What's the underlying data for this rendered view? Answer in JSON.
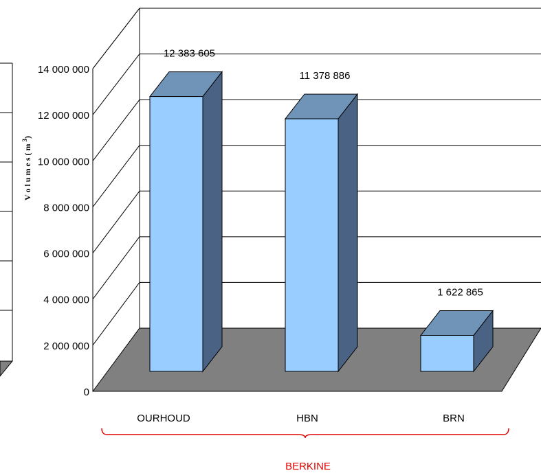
{
  "chart_data": {
    "type": "bar",
    "categories": [
      "OURHOUD",
      "HBN",
      "BRN"
    ],
    "values": [
      12383605,
      11378886,
      1622865
    ],
    "value_labels": [
      "12 383 605",
      "11 378 886",
      "1 622 865"
    ],
    "ylabel": "V o l u m e s ( m",
    "ylabel_superscript": "3",
    "ylabel_close": ")",
    "ylim": [
      0,
      14000000
    ],
    "yticks": [
      0,
      2000000,
      4000000,
      6000000,
      8000000,
      10000000,
      12000000,
      14000000
    ],
    "ytick_labels": [
      "0",
      "2 000 000",
      "4 000 000",
      "6 000 000",
      "8 000 000",
      "10 000 000",
      "12 000 000",
      "14 000 000"
    ],
    "group_label": "BERKINE",
    "grid": true,
    "three_d": true,
    "colors": {
      "bar_front": "#99ccff",
      "bar_top": "#6f94b8",
      "bar_side": "#4a6385",
      "floor": "#808080",
      "group_label": "#e00000"
    }
  }
}
